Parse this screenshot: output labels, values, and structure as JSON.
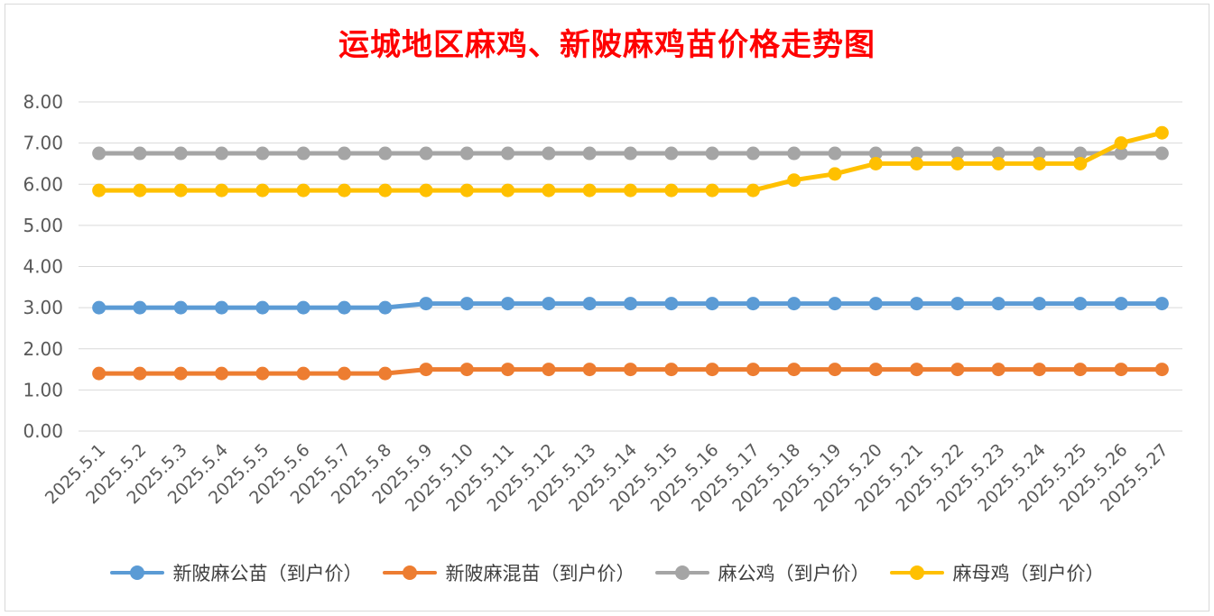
{
  "chart_data": {
    "type": "line",
    "title": "运城地区麻鸡、新陂麻鸡苗价格走势图",
    "xlabel": "",
    "ylabel": "",
    "ylim": [
      0,
      8
    ],
    "yticks": [
      "0.00",
      "1.00",
      "2.00",
      "3.00",
      "4.00",
      "5.00",
      "6.00",
      "7.00",
      "8.00"
    ],
    "grid": true,
    "legend_position": "bottom",
    "categories": [
      "2025.5.1",
      "2025.5.2",
      "2025.5.3",
      "2025.5.4",
      "2025.5.5",
      "2025.5.6",
      "2025.5.7",
      "2025.5.8",
      "2025.5.9",
      "2025.5.10",
      "2025.5.11",
      "2025.5.12",
      "2025.5.13",
      "2025.5.14",
      "2025.5.15",
      "2025.5.16",
      "2025.5.17",
      "2025.5.18",
      "2025.5.19",
      "2025.5.20",
      "2025.5.21",
      "2025.5.22",
      "2025.5.23",
      "2025.5.24",
      "2025.5.25",
      "2025.5.26",
      "2025.5.27"
    ],
    "series": [
      {
        "name": "新陂麻公苗（到户价）",
        "color": "#5b9bd5",
        "values": [
          3.0,
          3.0,
          3.0,
          3.0,
          3.0,
          3.0,
          3.0,
          3.0,
          3.1,
          3.1,
          3.1,
          3.1,
          3.1,
          3.1,
          3.1,
          3.1,
          3.1,
          3.1,
          3.1,
          3.1,
          3.1,
          3.1,
          3.1,
          3.1,
          3.1,
          3.1,
          3.1
        ]
      },
      {
        "name": "新陂麻混苗（到户价）",
        "color": "#ed7d31",
        "values": [
          1.4,
          1.4,
          1.4,
          1.4,
          1.4,
          1.4,
          1.4,
          1.4,
          1.5,
          1.5,
          1.5,
          1.5,
          1.5,
          1.5,
          1.5,
          1.5,
          1.5,
          1.5,
          1.5,
          1.5,
          1.5,
          1.5,
          1.5,
          1.5,
          1.5,
          1.5,
          1.5
        ]
      },
      {
        "name": "麻公鸡（到户价）",
        "color": "#a5a5a5",
        "values": [
          6.75,
          6.75,
          6.75,
          6.75,
          6.75,
          6.75,
          6.75,
          6.75,
          6.75,
          6.75,
          6.75,
          6.75,
          6.75,
          6.75,
          6.75,
          6.75,
          6.75,
          6.75,
          6.75,
          6.75,
          6.75,
          6.75,
          6.75,
          6.75,
          6.75,
          6.75,
          6.75
        ]
      },
      {
        "name": "麻母鸡（到户价）",
        "color": "#ffc000",
        "values": [
          5.85,
          5.85,
          5.85,
          5.85,
          5.85,
          5.85,
          5.85,
          5.85,
          5.85,
          5.85,
          5.85,
          5.85,
          5.85,
          5.85,
          5.85,
          5.85,
          5.85,
          6.1,
          6.25,
          6.5,
          6.5,
          6.5,
          6.5,
          6.5,
          6.5,
          7.0,
          7.25
        ]
      }
    ]
  }
}
